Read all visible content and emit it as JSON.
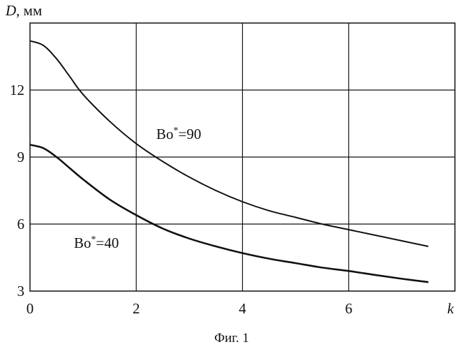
{
  "chart_data": {
    "type": "line",
    "ylabel_symbol": "D",
    "ylabel_unit": ", мм",
    "xlabel": "k",
    "caption": "Фиг. 1",
    "xlim": [
      0,
      8
    ],
    "ylim": [
      3,
      15
    ],
    "x_ticks": [
      "0",
      "2",
      "4",
      "6"
    ],
    "x_tick_values": [
      0,
      2,
      4,
      6
    ],
    "y_ticks": [
      "3",
      "6",
      "9",
      "12"
    ],
    "y_tick_values": [
      3,
      6,
      9,
      12
    ],
    "grid": true,
    "series": [
      {
        "label_base": "Bo",
        "label_sup": "*",
        "label_value": "=90",
        "x": [
          0,
          0.25,
          0.5,
          0.75,
          1,
          1.5,
          2,
          2.5,
          3,
          3.5,
          4,
          4.5,
          5,
          5.5,
          6,
          6.5,
          7,
          7.5
        ],
        "y": [
          14.2,
          14.0,
          13.4,
          12.6,
          11.8,
          10.6,
          9.6,
          8.8,
          8.1,
          7.5,
          7.0,
          6.6,
          6.3,
          6.0,
          5.75,
          5.5,
          5.25,
          5.0
        ]
      },
      {
        "label_base": "Bo",
        "label_sup": "*",
        "label_value": "=40",
        "x": [
          0,
          0.25,
          0.5,
          0.75,
          1,
          1.5,
          2,
          2.5,
          3,
          3.5,
          4,
          4.5,
          5,
          5.5,
          6,
          6.5,
          7,
          7.5
        ],
        "y": [
          9.55,
          9.4,
          9.0,
          8.5,
          8.0,
          7.1,
          6.4,
          5.8,
          5.35,
          5.0,
          4.7,
          4.45,
          4.25,
          4.05,
          3.9,
          3.72,
          3.55,
          3.4
        ]
      }
    ]
  }
}
